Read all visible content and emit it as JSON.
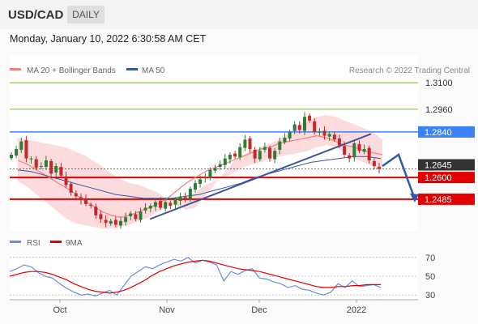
{
  "header": {
    "symbol": "USD/CAD",
    "timeframe": "DAILY",
    "timestamp": "Monday, January 10, 2022 6:30:58 AM CET"
  },
  "legend": {
    "bollinger": "MA 20 + Bollinger Bands",
    "ma50": "MA 50",
    "credit": "Research © 2022 Trading Central"
  },
  "rsi_legend": {
    "rsi": "RSI",
    "ma9": "9MA"
  },
  "colors": {
    "bollinger": "#f08080",
    "band_fill": "#fbd5d8",
    "ma50": "#3a5a99",
    "up": "#2e7d32",
    "down": "#c62828",
    "resistance": "#7cb342",
    "pivot": "#3b82f6",
    "support": "#e30000",
    "trend": "#3f5599",
    "last": "#333333"
  },
  "chart_data": [
    {
      "type": "candlestick",
      "ylim": [
        1.2318,
        1.3246
      ],
      "x_ticks": [
        "Oct",
        "Nov",
        "Dec",
        "2022"
      ],
      "price_levels": [
        {
          "value": 1.31,
          "label": "1.3100",
          "kind": "resistance"
        },
        {
          "value": 1.296,
          "label": "1.2960",
          "kind": "resistance"
        },
        {
          "value": 1.284,
          "label": "1.2840",
          "kind": "pivot"
        },
        {
          "value": 1.2645,
          "label": "1.2645",
          "kind": "last"
        },
        {
          "value": 1.26,
          "label": "1.2600",
          "kind": "support"
        },
        {
          "value": 1.2485,
          "label": "1.2485",
          "kind": "support"
        }
      ],
      "series": [
        {
          "name": "MA 20 + Bollinger Bands"
        },
        {
          "name": "MA 50"
        }
      ],
      "closes": [
        1.272,
        1.275,
        1.279,
        1.27,
        1.27,
        1.265,
        1.266,
        1.269,
        1.262,
        1.266,
        1.261,
        1.256,
        1.252,
        1.25,
        1.248,
        1.246,
        1.245,
        1.24,
        1.238,
        1.236,
        1.237,
        1.235,
        1.237,
        1.239,
        1.241,
        1.238,
        1.242,
        1.244,
        1.245,
        1.247,
        1.244,
        1.247,
        1.245,
        1.248,
        1.25,
        1.248,
        1.254,
        1.257,
        1.259,
        1.26,
        1.264,
        1.265,
        1.267,
        1.27,
        1.272,
        1.271,
        1.276,
        1.28,
        1.275,
        1.27,
        1.274,
        1.276,
        1.27,
        1.274,
        1.279,
        1.281,
        1.284,
        1.288,
        1.285,
        1.292,
        1.29,
        1.284,
        1.284,
        1.282,
        1.283,
        1.28,
        1.277,
        1.272,
        1.27,
        1.278,
        1.274,
        1.275,
        1.269,
        1.266,
        1.2645
      ],
      "trendlines": [
        {
          "from": [
            "2021-10-26",
            1.238
          ],
          "to": [
            "2022-01-03",
            1.283
          ]
        }
      ],
      "forecast_path": [
        1.266,
        1.272,
        1.2485
      ],
      "bollinger_upper": [
        1.281,
        1.28,
        1.279,
        1.278,
        1.277,
        1.276,
        1.274,
        1.272,
        1.269,
        1.266,
        1.262,
        1.259,
        1.257,
        1.256,
        1.254,
        1.252,
        1.248,
        1.245,
        1.243,
        1.244,
        1.25,
        1.256,
        1.262,
        1.268,
        1.272,
        1.274,
        1.276,
        1.278,
        1.28,
        1.283,
        1.288,
        1.29,
        1.292,
        1.293,
        1.292,
        1.29,
        1.288,
        1.286,
        1.284,
        1.28
      ],
      "bollinger_lower": [
        1.258,
        1.255,
        1.251,
        1.247,
        1.243,
        1.239,
        1.236,
        1.235,
        1.234,
        1.233,
        1.233,
        1.234,
        1.235,
        1.237,
        1.239,
        1.242,
        1.245,
        1.248,
        1.25,
        1.252,
        1.256,
        1.258,
        1.26,
        1.262,
        1.265,
        1.267,
        1.268,
        1.27,
        1.271,
        1.272,
        1.273,
        1.274,
        1.276,
        1.277,
        1.276,
        1.273,
        1.27,
        1.268,
        1.266,
        1.264
      ],
      "ma20": [
        1.269,
        1.267,
        1.264,
        1.261,
        1.258,
        1.255,
        1.252,
        1.248,
        1.245,
        1.242,
        1.24,
        1.239,
        1.24,
        1.242,
        1.244,
        1.246,
        1.249,
        1.253,
        1.257,
        1.26,
        1.263,
        1.265,
        1.267,
        1.269,
        1.271,
        1.273,
        1.275,
        1.276,
        1.278,
        1.279,
        1.28,
        1.281,
        1.282,
        1.281,
        1.279,
        1.277,
        1.276,
        1.274,
        1.273,
        1.272
      ],
      "ma50": [
        1.264,
        1.263,
        1.261,
        1.259,
        1.257,
        1.255,
        1.253,
        1.251,
        1.25,
        1.249,
        1.249,
        1.249,
        1.25,
        1.251,
        1.253,
        1.255,
        1.257,
        1.26,
        1.262,
        1.264,
        1.266,
        1.268,
        1.269,
        1.27,
        1.271,
        1.271,
        1.27
      ],
      "xlabel": "",
      "ylabel": ""
    },
    {
      "type": "line",
      "ylim": [
        25,
        75
      ],
      "y_ticks": [
        "70",
        "50",
        "30"
      ],
      "series": [
        {
          "name": "RSI",
          "values": [
            55,
            58,
            62,
            60,
            54,
            50,
            48,
            42,
            37,
            33,
            30,
            31,
            29,
            32,
            35,
            30,
            40,
            50,
            55,
            60,
            58,
            62,
            65,
            68,
            66,
            70,
            64,
            67,
            65,
            62,
            45,
            55,
            52,
            56,
            58,
            48,
            47,
            44,
            42,
            38,
            40,
            36,
            35,
            32,
            30,
            33,
            42,
            38,
            45,
            39,
            40,
            41,
            38
          ]
        },
        {
          "name": "9MA",
          "values": [
            50,
            52,
            54,
            55,
            55,
            54,
            52,
            49,
            46,
            42,
            39,
            36,
            34,
            33,
            32,
            33,
            35,
            38,
            42,
            46,
            51,
            55,
            58,
            61,
            63,
            65,
            66,
            67,
            66,
            64,
            62,
            60,
            58,
            57,
            56,
            55,
            53,
            51,
            49,
            47,
            45,
            43,
            41,
            39,
            38,
            38,
            39,
            39,
            40,
            40,
            41,
            41,
            41
          ]
        }
      ]
    }
  ]
}
